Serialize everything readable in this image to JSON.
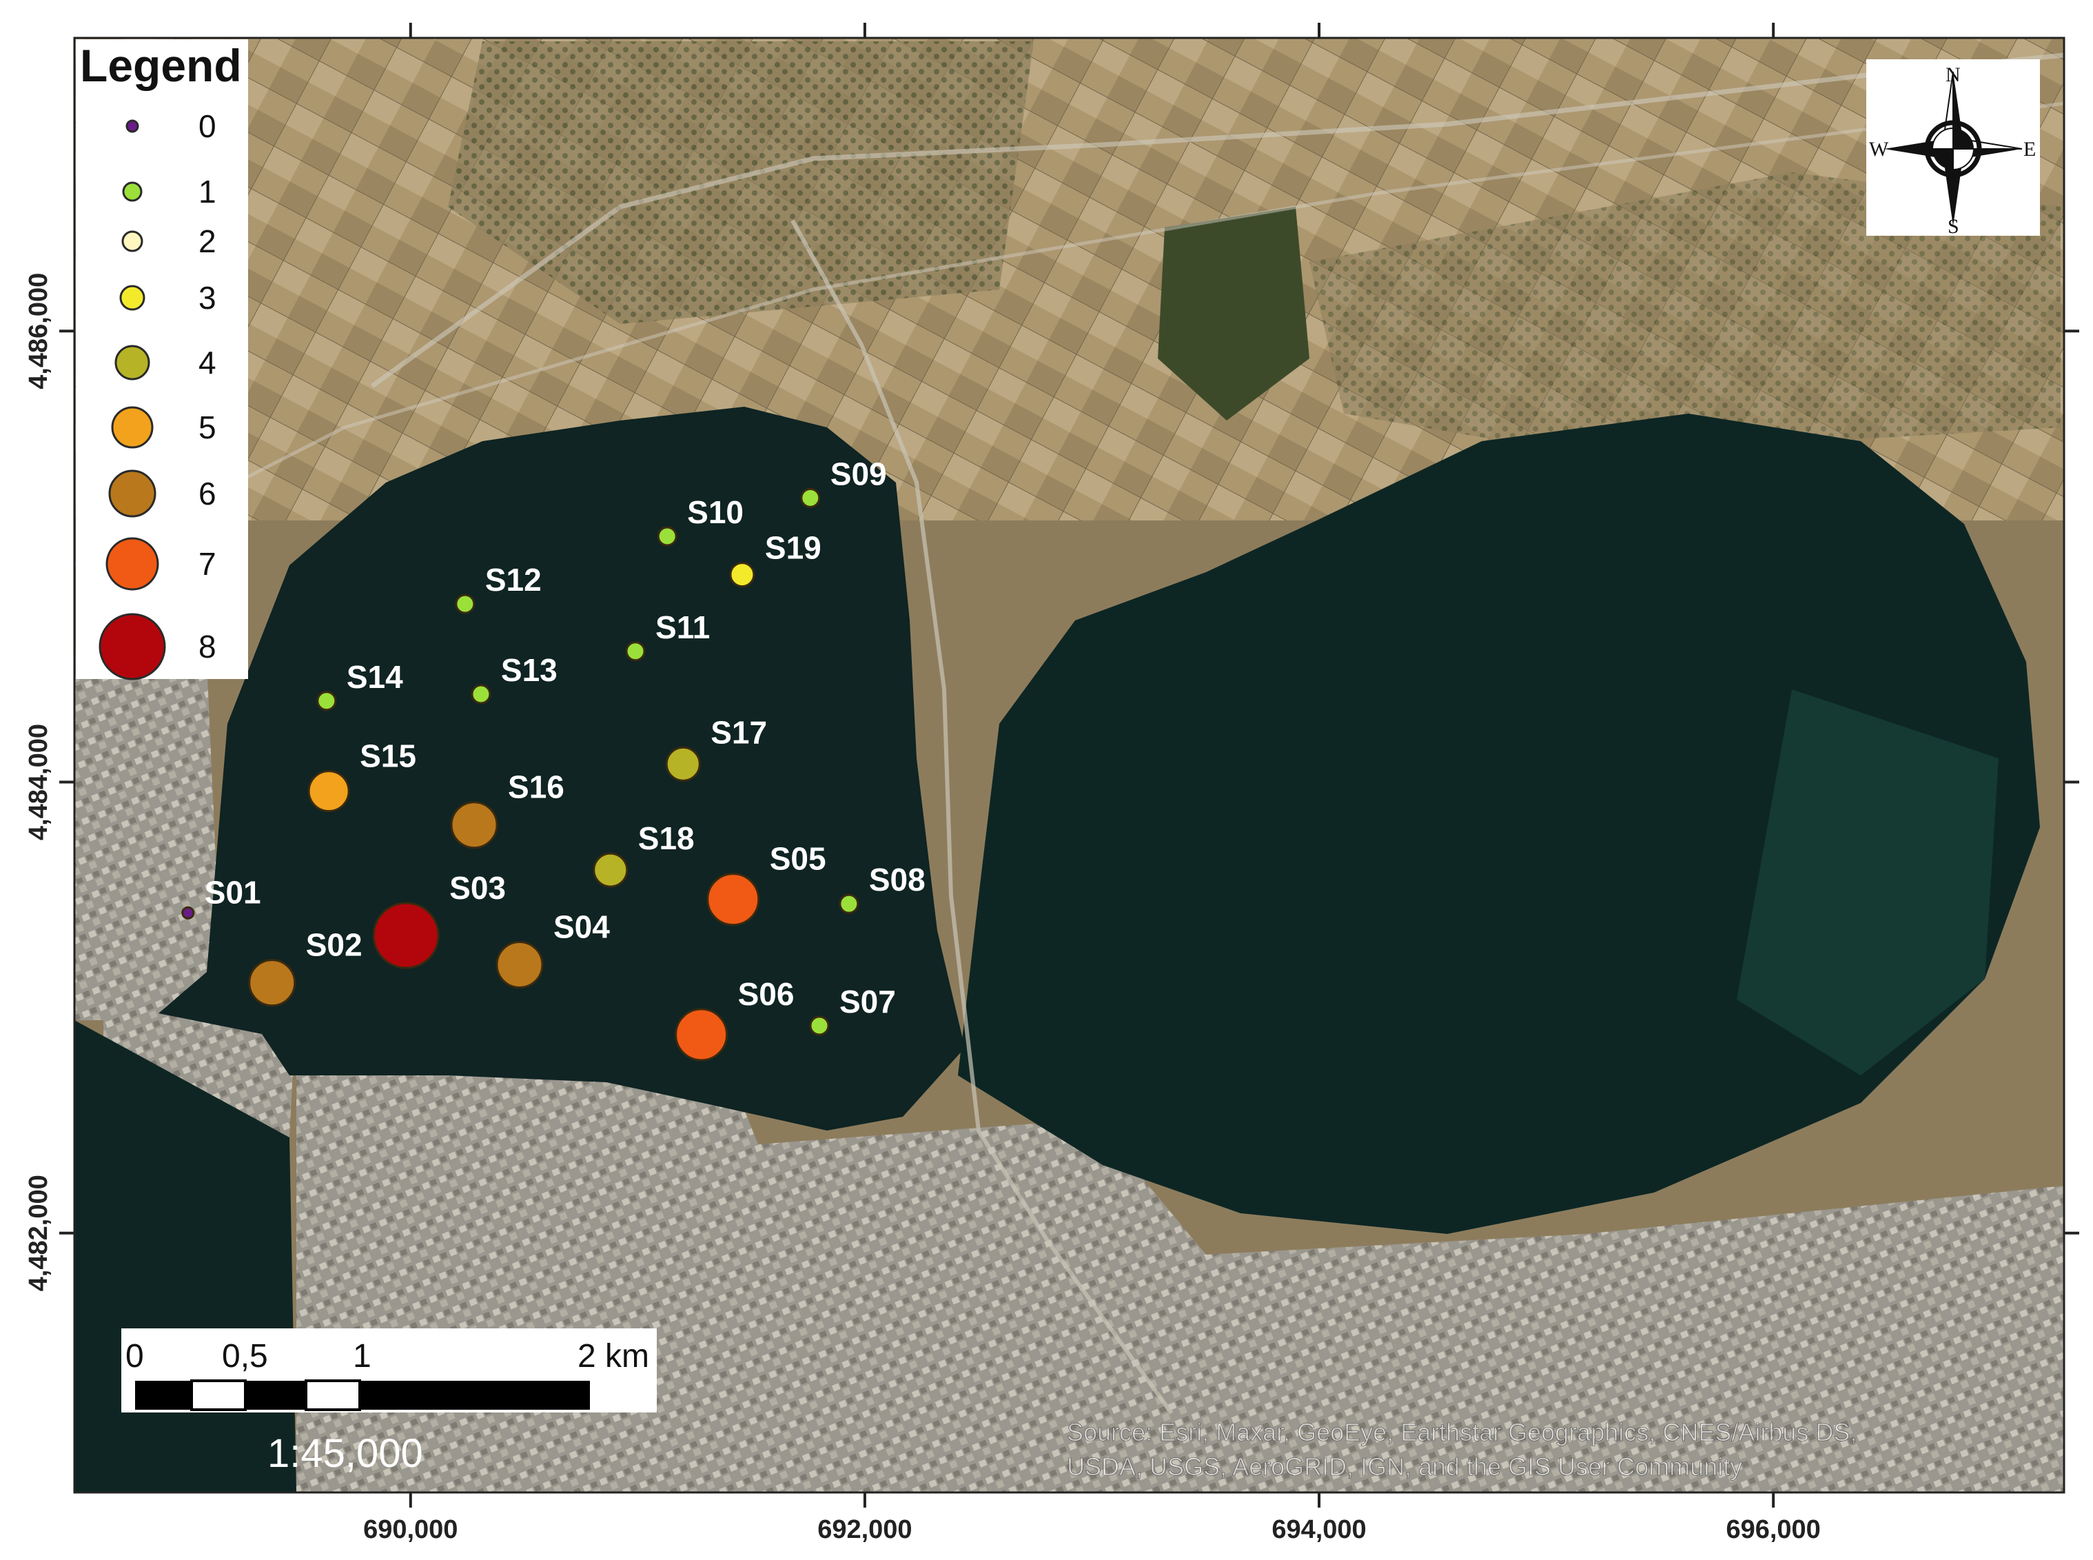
{
  "map": {
    "extent": {
      "xmin": 688520,
      "xmax": 697280,
      "ymin": 4480850,
      "ymax": 4487300
    },
    "x_ticks": [
      690000,
      692000,
      694000,
      696000
    ],
    "x_tick_labels": [
      "690,000",
      "692,000",
      "694,000",
      "696,000"
    ],
    "y_ticks": [
      4482000,
      4484000,
      4486000
    ],
    "y_tick_labels": [
      "4,482,000",
      "4,484,000",
      "4,486,000"
    ],
    "colors": {
      "water": "#0f2423",
      "land": "#8c7b5c",
      "urban": "#a3a097",
      "farmland": "#b8a47a",
      "vegetation": "#4e5a34"
    }
  },
  "legend": {
    "title": "Legend",
    "classes": [
      {
        "value": 0,
        "label": "0",
        "color": "#6a1b8a"
      },
      {
        "value": 1,
        "label": "1",
        "color": "#9be03a"
      },
      {
        "value": 2,
        "label": "2",
        "color": "#fff7c0"
      },
      {
        "value": 3,
        "label": "3",
        "color": "#f3ea2c"
      },
      {
        "value": 4,
        "label": "4",
        "color": "#b7b326"
      },
      {
        "value": 5,
        "label": "5",
        "color": "#f2a21c"
      },
      {
        "value": 6,
        "label": "6",
        "color": "#b9781c"
      },
      {
        "value": 7,
        "label": "7",
        "color": "#f05a14"
      },
      {
        "value": 8,
        "label": "8",
        "color": "#b3060c"
      }
    ]
  },
  "stations": [
    {
      "id": "S01",
      "class": 0,
      "x": 689020,
      "y": 4483420
    },
    {
      "id": "S02",
      "class": 6,
      "x": 689390,
      "y": 4483110
    },
    {
      "id": "S03",
      "class": 8,
      "x": 689980,
      "y": 4483320
    },
    {
      "id": "S04",
      "class": 6,
      "x": 690480,
      "y": 4483190
    },
    {
      "id": "S05",
      "class": 7,
      "x": 691420,
      "y": 4483480
    },
    {
      "id": "S06",
      "class": 7,
      "x": 691280,
      "y": 4482880
    },
    {
      "id": "S07",
      "class": 1,
      "x": 691800,
      "y": 4482920
    },
    {
      "id": "S08",
      "class": 1,
      "x": 691930,
      "y": 4483460
    },
    {
      "id": "S09",
      "class": 1,
      "x": 691760,
      "y": 4485260
    },
    {
      "id": "S10",
      "class": 1,
      "x": 691130,
      "y": 4485090
    },
    {
      "id": "S11",
      "class": 1,
      "x": 690990,
      "y": 4484580
    },
    {
      "id": "S12",
      "class": 1,
      "x": 690240,
      "y": 4484790
    },
    {
      "id": "S13",
      "class": 1,
      "x": 690310,
      "y": 4484390
    },
    {
      "id": "S14",
      "class": 1,
      "x": 689630,
      "y": 4484360
    },
    {
      "id": "S15",
      "class": 5,
      "x": 689640,
      "y": 4483960
    },
    {
      "id": "S16",
      "class": 6,
      "x": 690280,
      "y": 4483810
    },
    {
      "id": "S17",
      "class": 4,
      "x": 691200,
      "y": 4484080
    },
    {
      "id": "S18",
      "class": 4,
      "x": 690880,
      "y": 4483610
    },
    {
      "id": "S19",
      "class": 3,
      "x": 691460,
      "y": 4484920
    }
  ],
  "north_arrow": {
    "n": "N",
    "s": "S",
    "e": "E",
    "w": "W"
  },
  "scale_bar": {
    "labels": [
      "0",
      "0,5",
      "1",
      "2 km"
    ],
    "breaks_km": [
      0,
      0.5,
      1,
      2
    ],
    "ratio": "1:45,000"
  },
  "attribution": [
    "Source: Esri, Maxar, GeoEye, Earthstar Geographics, CNES/Airbus DS,",
    "USDA, USGS, AeroGRID, IGN, and the GIS User Community"
  ]
}
